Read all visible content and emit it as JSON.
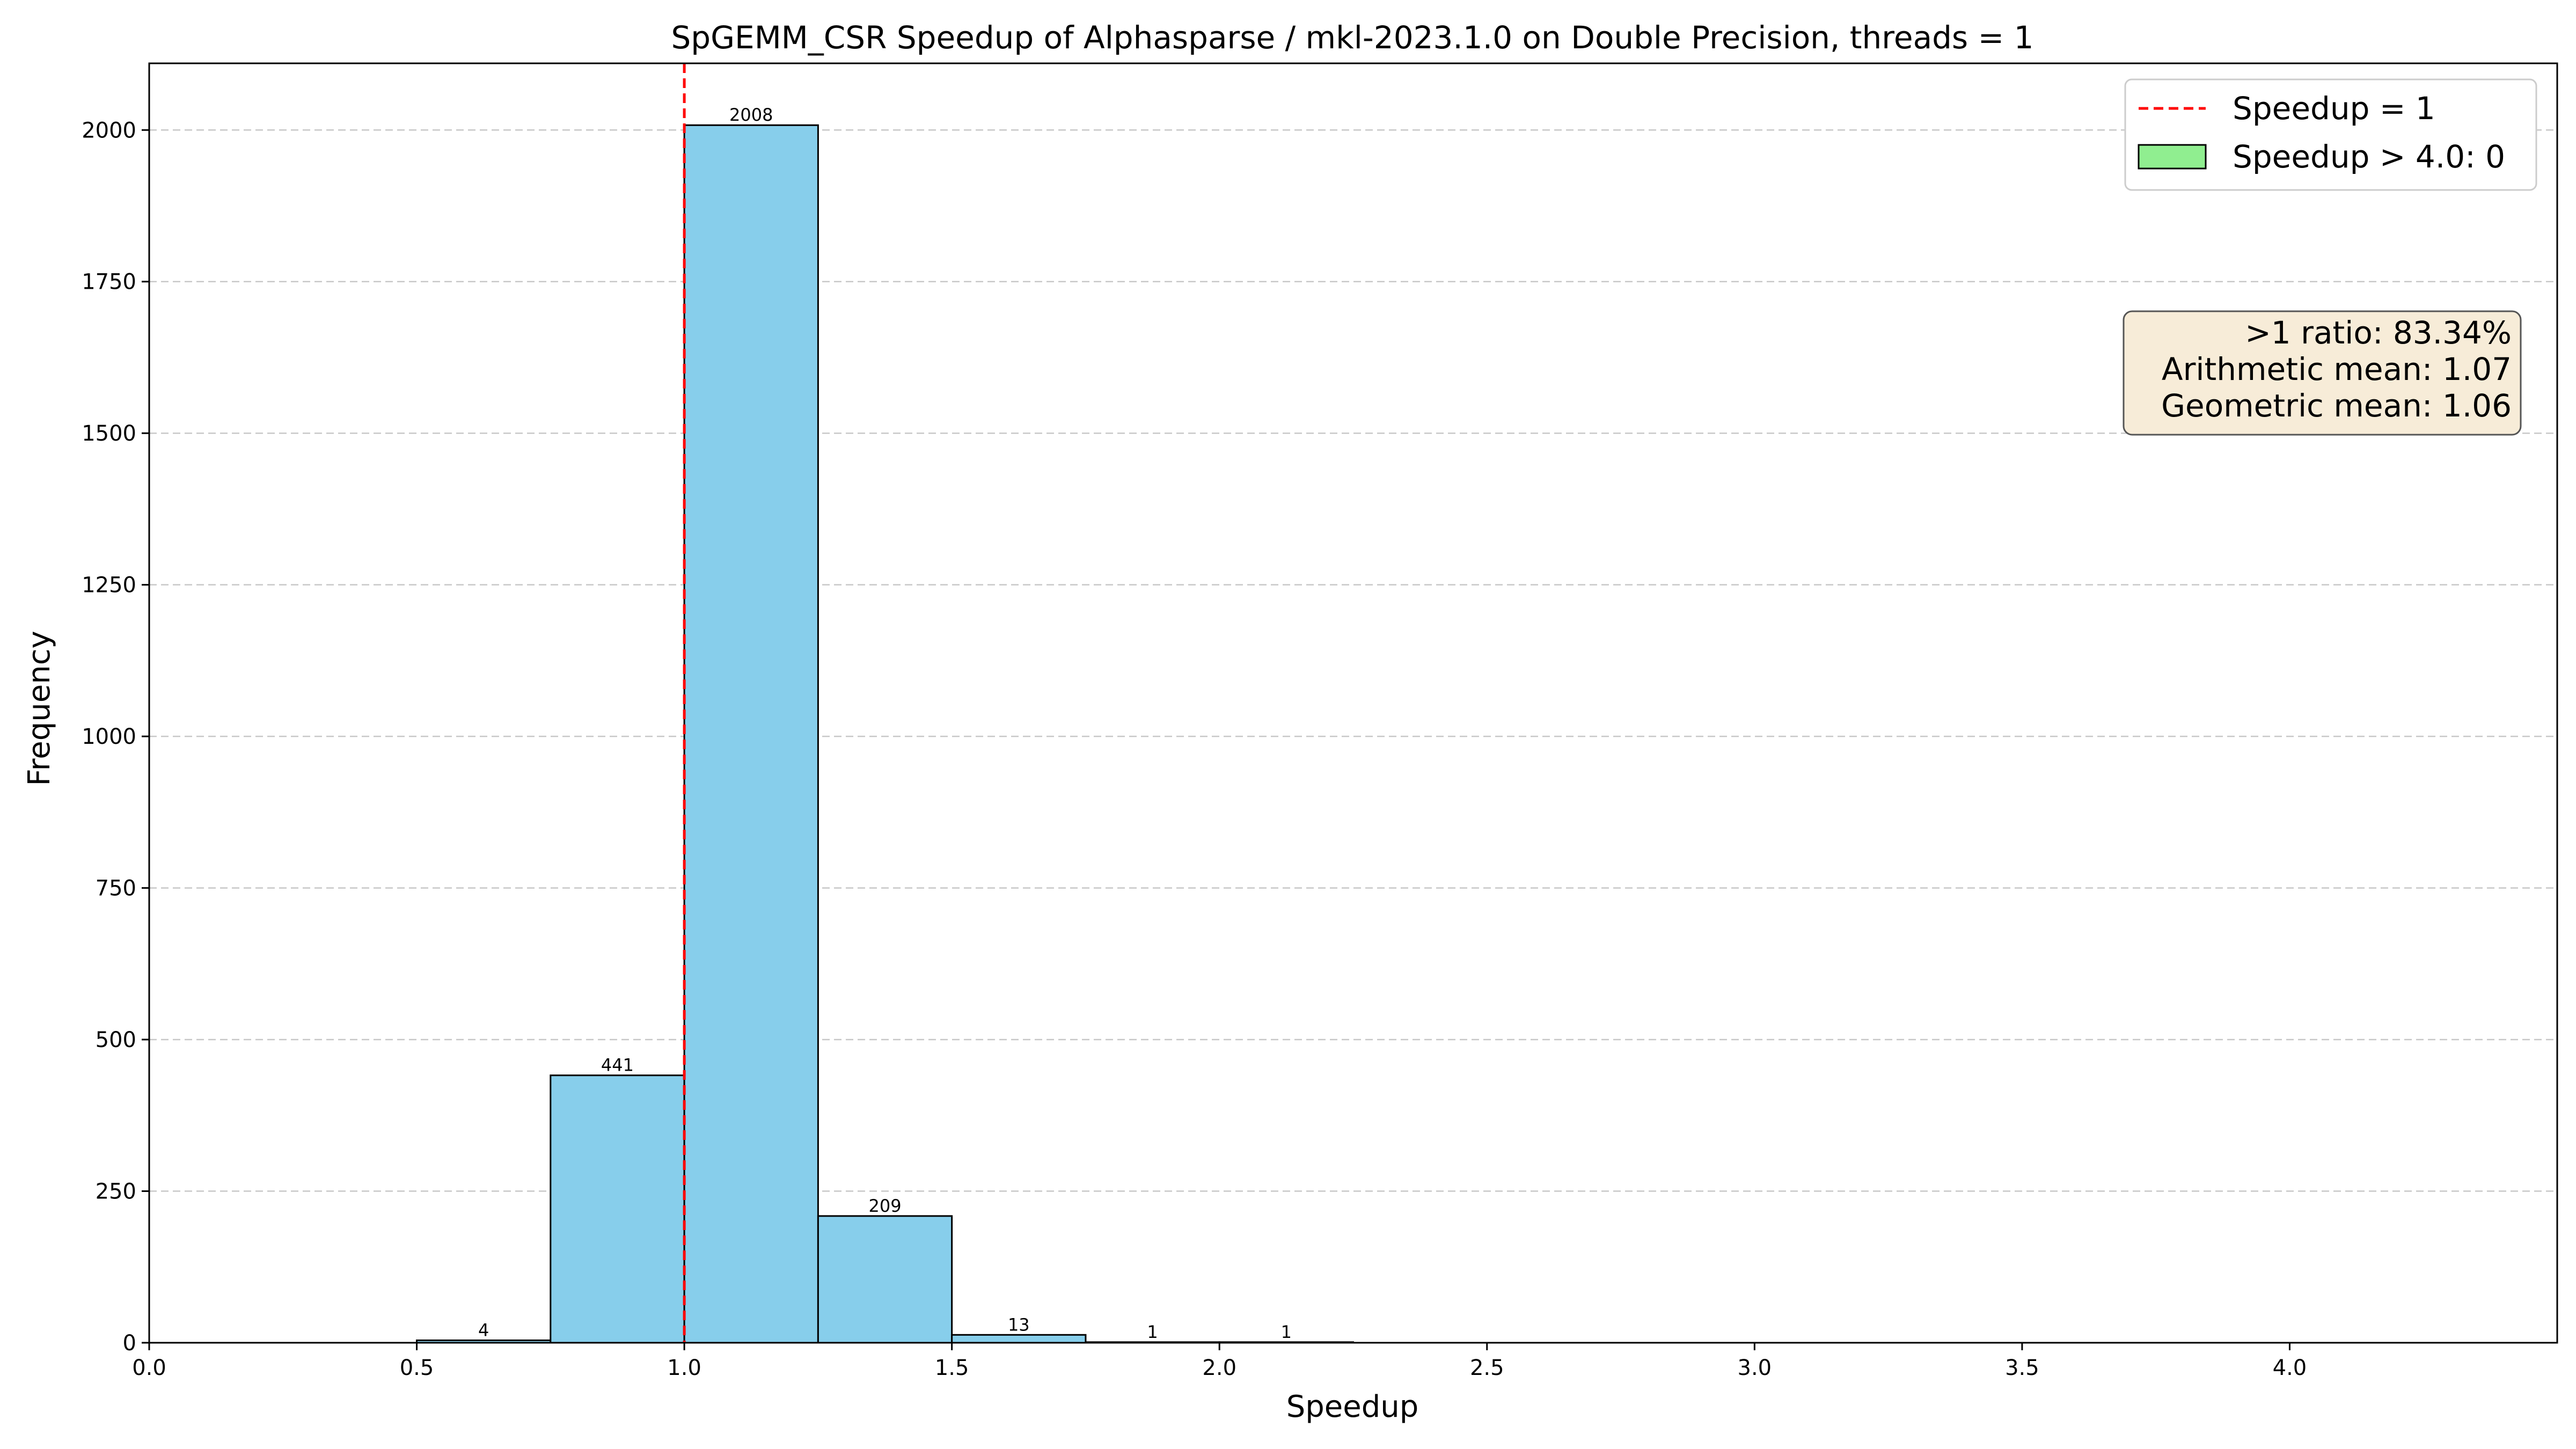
{
  "chart_data": {
    "type": "bar",
    "title": "SpGEMM_CSR Speedup of Alphasparse / mkl-2023.1.0 on Double Precision, threads = 1",
    "xlabel": "Speedup",
    "ylabel": "Frequency",
    "xlim": [
      0.0,
      4.5
    ],
    "ylim": [
      0,
      2110
    ],
    "x_ticks": [
      0.0,
      0.5,
      1.0,
      1.5,
      2.0,
      2.5,
      3.0,
      3.5,
      4.0
    ],
    "x_tick_labels": [
      "0.0",
      "0.5",
      "1.0",
      "1.5",
      "2.0",
      "2.5",
      "3.0",
      "3.5",
      "4.0"
    ],
    "y_ticks": [
      0,
      250,
      500,
      750,
      1000,
      1250,
      1500,
      1750,
      2000
    ],
    "y_tick_labels": [
      "0",
      "250",
      "500",
      "750",
      "1000",
      "1250",
      "1500",
      "1750",
      "2000"
    ],
    "grid": "y-dashed",
    "bin_width": 0.25,
    "bins": [
      {
        "start": 0.5,
        "end": 0.75,
        "value": 4,
        "label": "4"
      },
      {
        "start": 0.75,
        "end": 1.0,
        "value": 441,
        "label": "441"
      },
      {
        "start": 1.0,
        "end": 1.25,
        "value": 2008,
        "label": "2008"
      },
      {
        "start": 1.25,
        "end": 1.5,
        "value": 209,
        "label": "209"
      },
      {
        "start": 1.5,
        "end": 1.75,
        "value": 13,
        "label": "13"
      },
      {
        "start": 1.75,
        "end": 2.0,
        "value": 1,
        "label": "1"
      },
      {
        "start": 2.0,
        "end": 2.25,
        "value": 1,
        "label": "1"
      }
    ],
    "reference_line": {
      "x": 1.0,
      "label": "Speedup = 1",
      "color": "#ff0000"
    },
    "legend_entries": [
      {
        "label": "Speedup = 1",
        "kind": "line",
        "color": "#ff0000"
      },
      {
        "label": "Speedup > 4.0: 0",
        "kind": "patch",
        "color": "#90ee90"
      }
    ],
    "legend_position": "top-right",
    "stats_box": [
      ">1 ratio: 83.34%",
      "Arithmetic mean: 1.07",
      "Geometric mean: 1.06"
    ],
    "colors": {
      "bar": "#87ceeb",
      "edge": "#000000",
      "grid": "#c8c8c8",
      "stats_bg": "#f7ecd8"
    }
  }
}
